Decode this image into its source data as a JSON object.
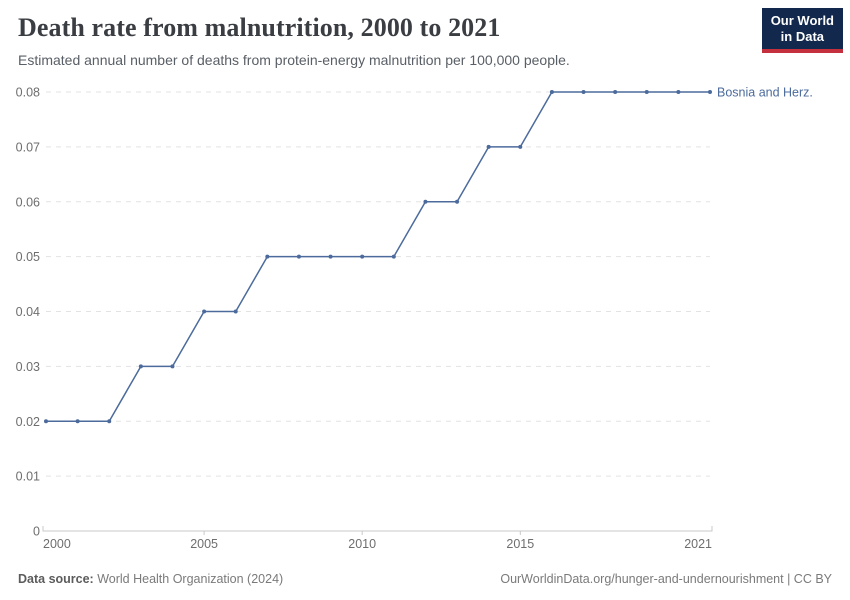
{
  "header": {
    "title": "Death rate from malnutrition, 2000 to 2021",
    "subtitle": "Estimated annual number of deaths from protein-energy malnutrition per 100,000 people."
  },
  "logo": {
    "line1": "Our World",
    "line2": "in Data"
  },
  "chart_data": {
    "type": "line",
    "title": "Death rate from malnutrition, 2000 to 2021",
    "xlabel": "",
    "ylabel": "",
    "x": [
      2000,
      2001,
      2002,
      2003,
      2004,
      2005,
      2006,
      2007,
      2008,
      2009,
      2010,
      2011,
      2012,
      2013,
      2014,
      2015,
      2016,
      2017,
      2018,
      2019,
      2020,
      2021
    ],
    "series": [
      {
        "name": "Bosnia and Herz.",
        "color": "#4c6b9c",
        "values": [
          0.02,
          0.02,
          0.02,
          0.03,
          0.03,
          0.04,
          0.04,
          0.05,
          0.05,
          0.05,
          0.05,
          0.05,
          0.06,
          0.06,
          0.07,
          0.07,
          0.08,
          0.08,
          0.08,
          0.08,
          0.08,
          0.08
        ]
      }
    ],
    "xlim": [
      2000,
      2021
    ],
    "ylim": [
      0,
      0.08
    ],
    "xticks": [
      2000,
      2005,
      2010,
      2015,
      2021
    ],
    "yticks": [
      0,
      0.01,
      0.02,
      0.03,
      0.04,
      0.05,
      0.06,
      0.07,
      0.08
    ],
    "ytick_labels": [
      "0",
      "0.01",
      "0.02",
      "0.03",
      "0.04",
      "0.05",
      "0.06",
      "0.07",
      "0.08"
    ],
    "grid": "horizontal-dashed",
    "legend_position": "label-at-line-end"
  },
  "footer": {
    "datasource_label": "Data source:",
    "datasource_value": " World Health Organization (2024)",
    "credit": "OurWorldinData.org/hunger-and-undernourishment | CC BY"
  },
  "colors": {
    "line": "#4c6b9c",
    "axis": "#c9c9c9",
    "gridline": "#e3e3e3",
    "tick_text": "#6e6e6e",
    "title_text": "#3a3d42",
    "subtitle_text": "#595f66",
    "logo_bg": "#12294d",
    "logo_accent": "#c5303e"
  }
}
